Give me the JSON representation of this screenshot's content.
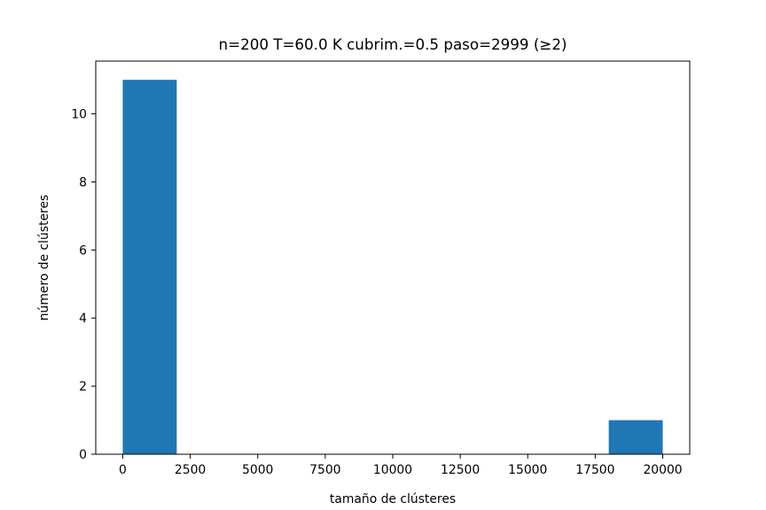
{
  "chart_data": {
    "type": "bar",
    "title": "n=200 T=60.0 K cubrim.=0.5 paso=2999 (≥2)",
    "xlabel": "tamaño de clústeres",
    "ylabel": "número de clústeres",
    "xlim": [
      -1000,
      21000
    ],
    "ylim": [
      0,
      11.55
    ],
    "bins": [
      {
        "x0": 0,
        "x1": 2000,
        "count": 11
      },
      {
        "x0": 2000,
        "x1": 4000,
        "count": 0
      },
      {
        "x0": 4000,
        "x1": 6000,
        "count": 0
      },
      {
        "x0": 6000,
        "x1": 8000,
        "count": 0
      },
      {
        "x0": 8000,
        "x1": 10000,
        "count": 0
      },
      {
        "x0": 10000,
        "x1": 12000,
        "count": 0
      },
      {
        "x0": 12000,
        "x1": 14000,
        "count": 0
      },
      {
        "x0": 14000,
        "x1": 16000,
        "count": 0
      },
      {
        "x0": 16000,
        "x1": 18000,
        "count": 0
      },
      {
        "x0": 18000,
        "x1": 20000,
        "count": 1
      }
    ],
    "xticks": [
      0,
      2500,
      5000,
      7500,
      10000,
      12500,
      15000,
      17500,
      20000
    ],
    "yticks": [
      0,
      2,
      4,
      6,
      8,
      10
    ],
    "bar_color": "#1f77b4",
    "grid": false,
    "legend": "none"
  }
}
